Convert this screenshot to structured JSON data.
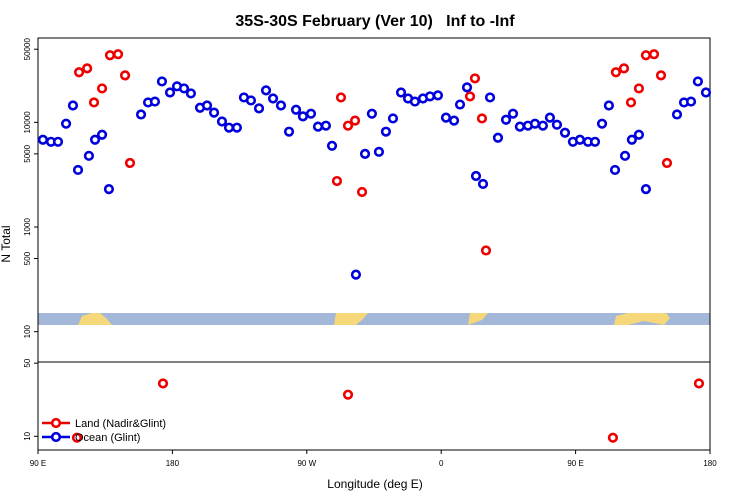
{
  "chart_data": {
    "type": "scatter",
    "title": "35S-30S February (Ver 10)   Inf to -Inf",
    "xlabel": "Longitude (deg E)",
    "ylabel": "N Total",
    "xlim": [
      90,
      540
    ],
    "xticks": [
      {
        "value": 90,
        "label": "90 E"
      },
      {
        "value": 180,
        "label": "180"
      },
      {
        "value": 270,
        "label": "90 W"
      },
      {
        "value": 360,
        "label": "0"
      },
      {
        "value": 450,
        "label": "90 E"
      },
      {
        "value": 540,
        "label": "180"
      }
    ],
    "ylim": [
      7.4,
      64000
    ],
    "yscale": "log",
    "yticks": [
      10,
      50,
      100,
      500,
      1000,
      5000,
      10000,
      50000
    ],
    "grid": false,
    "legend": "lower left",
    "series": [
      {
        "name": "Land (Nadir&Glint)",
        "color": "#ee0000",
        "x": [
          117.5,
          122.9,
          127.5,
          132.9,
          138.2,
          143.6,
          148.3,
          151.6,
          290.2,
          292.9,
          297.6,
          302.3,
          307.0,
          379.3,
          382.6,
          387.3,
          390.0,
          477.0,
          482.4,
          487.1,
          492.4,
          497.1,
          502.5,
          507.2,
          511.2,
          173.7,
          297.6,
          116.1,
          475.0,
          532.6
        ],
        "values": [
          30100,
          32800,
          15500,
          21100,
          43800,
          44800,
          28100,
          4090,
          2750,
          17300,
          9300,
          10400,
          2160,
          17700,
          26300,
          10900,
          597,
          30100,
          32800,
          15500,
          21100,
          43800,
          44800,
          28100,
          4090,
          32,
          25,
          9.7,
          9.7,
          32
        ]
      },
      {
        "name": "Ocean (Glint)",
        "color": "#0000dd",
        "x": [
          93.3,
          98.7,
          103.4,
          108.8,
          113.4,
          116.8,
          124.1,
          128.2,
          132.9,
          137.5,
          159.0,
          163.7,
          168.3,
          173.0,
          178.4,
          183.1,
          187.8,
          192.4,
          198.5,
          203.2,
          207.9,
          213.2,
          217.9,
          223.2,
          227.9,
          232.6,
          238.0,
          242.7,
          247.4,
          252.7,
          258.1,
          262.8,
          267.4,
          272.8,
          277.5,
          282.8,
          286.9,
          302.9,
          309.0,
          313.6,
          318.3,
          323.0,
          327.7,
          333.1,
          337.8,
          342.4,
          347.8,
          352.5,
          357.8,
          363.2,
          368.6,
          372.6,
          377.3,
          383.3,
          388.0,
          392.7,
          398.0,
          403.4,
          408.1,
          412.7,
          418.1,
          422.8,
          428.1,
          432.8,
          437.5,
          442.9,
          448.2,
          452.9,
          458.3,
          463.0,
          467.7,
          472.3,
          476.4,
          483.1,
          487.7,
          492.4,
          497.1,
          517.9,
          522.6,
          527.3,
          531.9,
          537.3
        ],
        "values": [
          6820,
          6520,
          6520,
          9710,
          14500,
          3510,
          4790,
          6820,
          7620,
          2300,
          11900,
          15500,
          15800,
          24600,
          19300,
          22100,
          21100,
          18900,
          13800,
          14500,
          12400,
          10200,
          8900,
          8900,
          17300,
          16200,
          13600,
          20200,
          16900,
          14500,
          8150,
          13200,
          11400,
          12100,
          9100,
          9300,
          5970,
          351,
          5000,
          12100,
          5230,
          8150,
          10900,
          19300,
          16900,
          15800,
          16900,
          17700,
          18100,
          11100,
          10400,
          14800,
          21600,
          3070,
          2580,
          17300,
          7130,
          10600,
          12100,
          9100,
          9300,
          9710,
          9300,
          11100,
          9500,
          7960,
          6520,
          6820,
          6520,
          6520,
          9710,
          14500,
          3510,
          4790,
          6820,
          7620,
          2300,
          11900,
          15500,
          15800,
          24600,
          19300
        ]
      }
    ]
  }
}
